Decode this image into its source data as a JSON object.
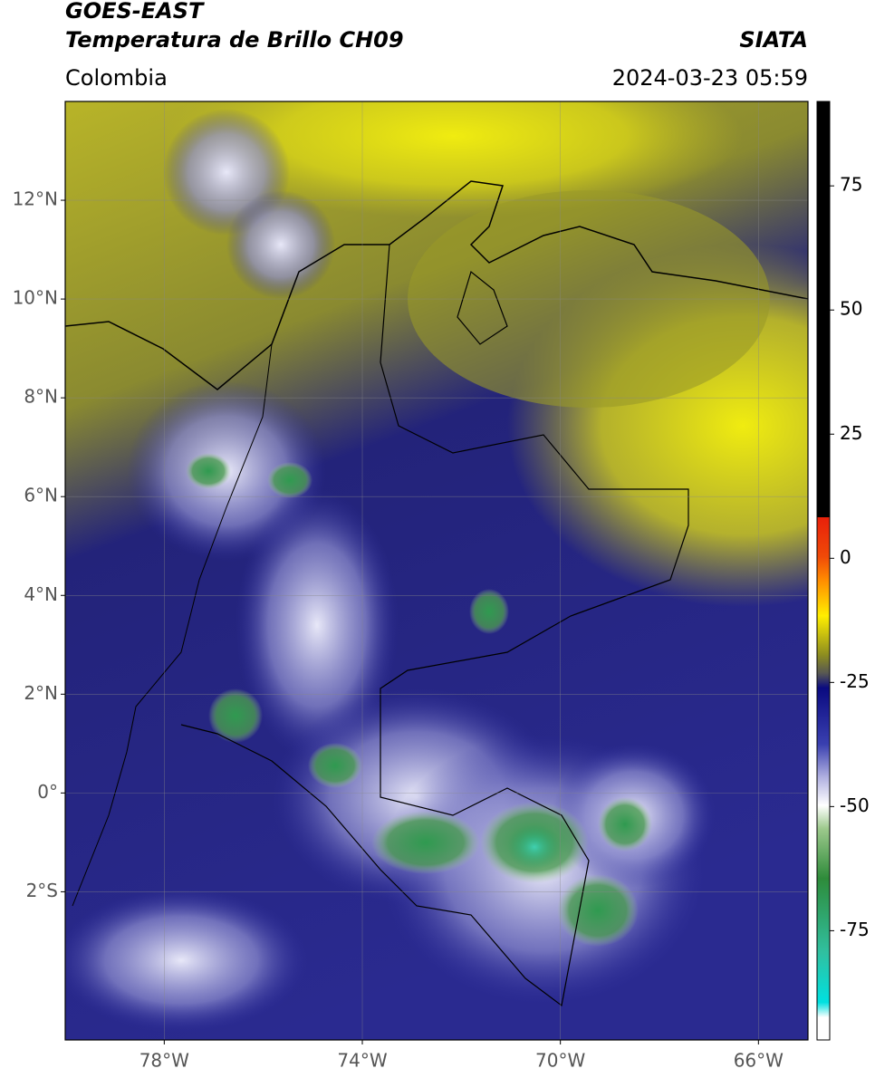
{
  "header": {
    "title_line1": "GOES-EAST",
    "title_line2": "Temperatura de Brillo CH09",
    "source": "SIATA",
    "region": "Colombia",
    "timestamp": "2024-03-23 05:59"
  },
  "chart_data": {
    "type": "map",
    "xlim": [
      -80,
      -65
    ],
    "xticks": [
      {
        "value": -78,
        "label": "78°W"
      },
      {
        "value": -74,
        "label": "74°W"
      },
      {
        "value": -70,
        "label": "70°W"
      },
      {
        "value": -66,
        "label": "66°W"
      }
    ],
    "ylim": [
      -5,
      14
    ],
    "yticks": [
      {
        "value": 12,
        "label": "12°N"
      },
      {
        "value": 10,
        "label": "10°N"
      },
      {
        "value": 8,
        "label": "8°N"
      },
      {
        "value": 6,
        "label": "6°N"
      },
      {
        "value": 4,
        "label": "4°N"
      },
      {
        "value": 2,
        "label": "2°N"
      },
      {
        "value": 0,
        "label": "0°"
      },
      {
        "value": -2,
        "label": "2°S"
      }
    ],
    "grid": true,
    "colorbar": {
      "lim": [
        -97,
        92
      ],
      "ticks": [
        75,
        50,
        25,
        0,
        -25,
        -50,
        -75
      ]
    }
  }
}
